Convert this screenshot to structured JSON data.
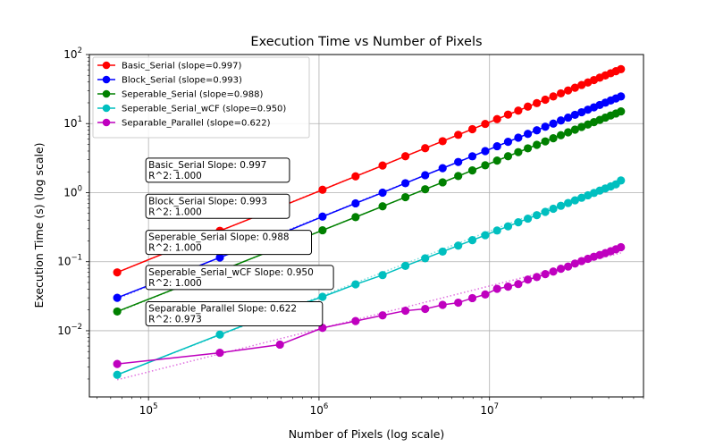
{
  "chart_data": {
    "type": "line",
    "title": "Execution Time vs Number of Pixels",
    "xlabel": "Number of Pixels (log scale)",
    "ylabel": "Execution Time (s) (log scale)",
    "xscale": "log",
    "yscale": "log",
    "xlim": [
      45000,
      80000000
    ],
    "ylim": [
      0.0011,
      100
    ],
    "grid": true,
    "legend_placement": "top-left",
    "x_ticks": [
      {
        "value": 100000,
        "base": "10",
        "exp": "5"
      },
      {
        "value": 1000000,
        "base": "10",
        "exp": "6"
      },
      {
        "value": 10000000,
        "base": "10",
        "exp": "7"
      }
    ],
    "y_ticks": [
      {
        "value": 0.01,
        "base": "10",
        "exp": "−2"
      },
      {
        "value": 0.1,
        "base": "10",
        "exp": "−1"
      },
      {
        "value": 1,
        "base": "10",
        "exp": "0"
      },
      {
        "value": 10,
        "base": "10",
        "exp": "1"
      },
      {
        "value": 100,
        "base": "10",
        "exp": "2"
      }
    ],
    "x": [
      65536,
      262144,
      589824,
      1048576,
      1638400,
      2359296,
      3211264,
      4194304,
      5308416,
      6553600,
      7929856,
      9437184,
      11075584,
      12845056,
      14745600,
      16777216,
      18939904,
      21233664,
      23658496,
      26214400,
      28901376,
      31719424,
      34668544,
      37748736,
      40960000,
      44302336,
      47775744,
      51380224,
      55115776,
      58982400
    ],
    "series": [
      {
        "name": "Basic_Serial (slope=0.997)",
        "color": "#ff0000",
        "fit_color": "#ff7777",
        "values": [
          0.07,
          0.28,
          0.62,
          1.1,
          1.72,
          2.47,
          3.37,
          4.4,
          5.56,
          6.87,
          8.3,
          9.9,
          11.6,
          13.5,
          15.4,
          17.6,
          19.8,
          22.2,
          24.7,
          27.4,
          30.2,
          33.1,
          36.2,
          39.4,
          42.7,
          46.2,
          49.8,
          53.6,
          57.4,
          61.4
        ],
        "fit": [
          0.0702,
          61.4
        ]
      },
      {
        "name": "Block_Serial (slope=0.993)",
        "color": "#0000ff",
        "fit_color": "#7777ff",
        "values": [
          0.03,
          0.115,
          0.25,
          0.45,
          0.7,
          1.0,
          1.37,
          1.79,
          2.26,
          2.78,
          3.36,
          4.0,
          4.7,
          5.45,
          6.25,
          7.1,
          8.0,
          9.0,
          10.0,
          11.1,
          12.2,
          13.4,
          14.6,
          15.9,
          17.2,
          18.6,
          20.1,
          21.6,
          23.1,
          24.7
        ],
        "fit": [
          0.0292,
          24.7
        ]
      },
      {
        "name": "Seperable_Serial (slope=0.988)",
        "color": "#008000",
        "fit_color": "#66bb66",
        "values": [
          0.019,
          0.073,
          0.162,
          0.285,
          0.442,
          0.634,
          0.86,
          1.12,
          1.41,
          1.74,
          2.1,
          2.49,
          2.91,
          3.37,
          3.86,
          4.38,
          4.93,
          5.52,
          6.14,
          6.79,
          7.47,
          8.18,
          8.93,
          9.7,
          10.5,
          11.3,
          12.2,
          13.1,
          14.0,
          15.0
        ],
        "fit": [
          0.0187,
          15.0
        ]
      },
      {
        "name": "Seperable_Serial_wCF (slope=0.950)",
        "color": "#00bfbf",
        "fit_color": "#77dddd",
        "values": [
          0.0023,
          0.0088,
          0.019,
          0.031,
          0.047,
          0.064,
          0.087,
          0.112,
          0.14,
          0.171,
          0.205,
          0.242,
          0.283,
          0.325,
          0.372,
          0.42,
          0.472,
          0.527,
          0.584,
          0.645,
          0.708,
          0.774,
          0.843,
          0.915,
          0.99,
          1.07,
          1.15,
          1.23,
          1.32,
          1.5
        ],
        "fit": [
          0.00231,
          1.5
        ]
      },
      {
        "name": "Separable_Parallel (slope=0.622)",
        "color": "#bf00bf",
        "fit_color": "#e070e0",
        "values": [
          0.0033,
          0.0048,
          0.0063,
          0.011,
          0.0138,
          0.0167,
          0.0195,
          0.0207,
          0.0237,
          0.0255,
          0.0297,
          0.0335,
          0.0405,
          0.0435,
          0.0475,
          0.055,
          0.06,
          0.066,
          0.072,
          0.079,
          0.085,
          0.094,
          0.102,
          0.11,
          0.118,
          0.125,
          0.133,
          0.142,
          0.151,
          0.162
        ],
        "fit": [
          0.00195,
          0.134
        ]
      }
    ],
    "annotations": [
      {
        "line1": "Basic_Serial Slope: 0.997",
        "line2": "R^2: 1.000",
        "anchor_x": 100000,
        "anchor_y": 1.5
      },
      {
        "line1": "Block_Serial Slope: 0.993",
        "line2": "R^2: 1.000",
        "anchor_x": 100000,
        "anchor_y": 0.45
      },
      {
        "line1": "Seperable_Serial Slope: 0.988",
        "line2": "R^2: 1.000",
        "anchor_x": 100000,
        "anchor_y": 0.135
      },
      {
        "line1": "Seperable_Serial_wCF Slope: 0.950",
        "line2": "R^2: 1.000",
        "anchor_x": 100000,
        "anchor_y": 0.042
      },
      {
        "line1": "Separable_Parallel Slope: 0.622",
        "line2": "R^2: 0.973",
        "anchor_x": 100000,
        "anchor_y": 0.0125
      }
    ]
  }
}
